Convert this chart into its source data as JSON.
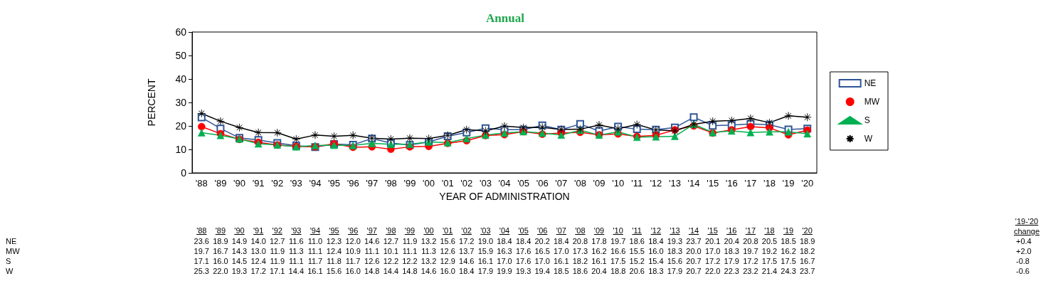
{
  "chart_data": {
    "type": "line",
    "title": "Annual",
    "xlabel": "YEAR OF ADMINISTRATION",
    "ylabel": "PERCENT",
    "categories": [
      "'88",
      "'89",
      "'90",
      "'91",
      "'92",
      "'93",
      "'94",
      "'95",
      "'96",
      "'97",
      "'98",
      "'99",
      "'00",
      "'01",
      "'02",
      "'03",
      "'04",
      "'05",
      "'06",
      "'07",
      "'08",
      "'09",
      "'10",
      "'11",
      "'12",
      "'13",
      "'14",
      "'15",
      "'16",
      "'17",
      "'18",
      "'19",
      "'20"
    ],
    "series": [
      {
        "name": "NE",
        "color": "#2f5597",
        "marker": "square",
        "value_labels": [
          "23.6",
          "18.9",
          "14.9",
          "14.0",
          "12.7",
          "11.6",
          "11.0",
          "12.3",
          "12.0",
          "14.6",
          "12.7",
          "11.9",
          "13.2",
          "15.6",
          "17.2",
          "19.0",
          "18.4",
          "18.4",
          "20.2",
          "18.4",
          "20.8",
          "17.8",
          "19.7",
          "18.6",
          "18.4",
          "19.3",
          "23.7",
          "20.1",
          "20.4",
          "20.8",
          "20.5",
          "18.5",
          "18.9"
        ],
        "values": [
          23.6,
          18.9,
          14.9,
          14.0,
          12.7,
          11.6,
          11.0,
          12.3,
          12.0,
          14.6,
          12.7,
          11.9,
          13.2,
          15.6,
          17.2,
          19.0,
          18.4,
          18.4,
          20.2,
          18.4,
          20.8,
          17.8,
          19.7,
          18.6,
          18.4,
          19.3,
          23.7,
          20.1,
          20.4,
          20.8,
          20.5,
          18.5,
          18.9
        ]
      },
      {
        "name": "MW",
        "color": "#ff0000",
        "marker": "circle",
        "value_labels": [
          "19.7",
          "16.7",
          "14.3",
          "13.0",
          "11.9",
          "11.3",
          "11.1",
          "12.4",
          "10.9",
          "11.1",
          "10.1",
          "11.1",
          "11.3",
          "12.6",
          "13.7",
          "15.9",
          "16.3",
          "17.6",
          "16.5",
          "17.0",
          "17.3",
          "16.2",
          "16.6",
          "15.5",
          "16.0",
          "18.3",
          "20.0",
          "17.0",
          "18.3",
          "19.7",
          "19.2",
          "16.2",
          "18.2"
        ],
        "values": [
          19.7,
          16.7,
          14.3,
          13.0,
          11.9,
          11.3,
          11.1,
          12.4,
          10.9,
          11.1,
          10.1,
          11.1,
          11.3,
          12.6,
          13.7,
          15.9,
          16.3,
          17.6,
          16.5,
          17.0,
          17.3,
          16.2,
          16.6,
          15.5,
          16.0,
          18.3,
          20.0,
          17.0,
          18.3,
          19.7,
          19.2,
          16.2,
          18.2
        ]
      },
      {
        "name": "S",
        "color": "#00b050",
        "marker": "triangle",
        "value_labels": [
          "17.1",
          "16.0",
          "14.5",
          "12.4",
          "11.9",
          "11.1",
          "11.7",
          "11.8",
          "11.7",
          "12.6",
          "12.2",
          "12.2",
          "13.2",
          "12.9",
          "14.6",
          "16.1",
          "17.0",
          "17.6",
          "17.0",
          "16.1",
          "18.2",
          "16.1",
          "17.5",
          "15.2",
          "15.4",
          "15.6",
          "20.7",
          "17.2",
          "17.9",
          "17.2",
          "17.5",
          "17.5",
          "16.7"
        ],
        "values": [
          17.1,
          16.0,
          14.5,
          12.4,
          11.9,
          11.1,
          11.7,
          11.8,
          11.7,
          12.6,
          12.2,
          12.2,
          13.2,
          12.9,
          14.6,
          16.1,
          17.0,
          17.6,
          17.0,
          16.1,
          18.2,
          16.1,
          17.5,
          15.2,
          15.4,
          15.6,
          20.7,
          17.2,
          17.9,
          17.2,
          17.5,
          17.5,
          16.7
        ]
      },
      {
        "name": "W",
        "color": "#000000",
        "marker": "star",
        "value_labels": [
          "25.3",
          "22.0",
          "19.3",
          "17.2",
          "17.1",
          "14.4",
          "16.1",
          "15.6",
          "16.0",
          "14.8",
          "14.4",
          "14.8",
          "14.6",
          "16.0",
          "18.4",
          "17.9",
          "19.9",
          "19.3",
          "19.4",
          "18.5",
          "18.6",
          "20.4",
          "18.8",
          "20.6",
          "18.3",
          "17.9",
          "20.7",
          "22.0",
          "22.3",
          "23.2",
          "21.4",
          "24.3",
          "23.7"
        ],
        "values": [
          25.3,
          22.0,
          19.3,
          17.2,
          17.1,
          14.4,
          16.1,
          15.6,
          16.0,
          14.8,
          14.4,
          14.8,
          14.6,
          16.0,
          18.4,
          17.9,
          19.9,
          19.3,
          19.4,
          18.5,
          18.6,
          20.4,
          18.8,
          20.6,
          18.3,
          17.9,
          20.7,
          22.0,
          22.3,
          23.2,
          21.4,
          24.3,
          23.7
        ]
      }
    ],
    "ylim": [
      0,
      60
    ],
    "yticks": [
      0,
      10,
      20,
      30,
      40,
      50,
      60
    ],
    "grid": false,
    "legend": "right",
    "line_style": "solid",
    "annotations": [
      "'19-'20 change",
      "+0.4",
      "+2.0",
      "-0.8",
      "-0.6"
    ]
  }
}
